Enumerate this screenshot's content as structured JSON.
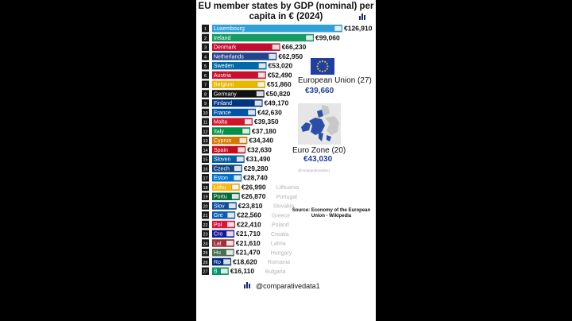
{
  "title_lines": [
    "EU member states by GDP (nominal) per",
    "capita in € (2024)"
  ],
  "eu": {
    "label": "European Union (27)",
    "value": "€39,660"
  },
  "eurozone": {
    "label": "Euro Zone (20)",
    "value": "€43,030"
  },
  "watermark": "@comparativedata1",
  "source": "Source: Economy of the European Union - Wikipedia",
  "handle": "@comparativedata1",
  "chart_data": {
    "type": "bar",
    "orientation": "horizontal",
    "title": "EU member states by GDP (nominal) per capita in € (2024)",
    "categories": [
      "Luxembourg",
      "Ireland",
      "Denmark",
      "Netherlands",
      "Sweden",
      "Austria",
      "Belgium",
      "Germany",
      "Finland",
      "France",
      "Malta",
      "Italy",
      "Cyprus",
      "Spain",
      "Slovenia",
      "Czech",
      "Estonia",
      "Lithuania",
      "Portugal",
      "Slovakia",
      "Greece",
      "Poland",
      "Croatia",
      "Latvia",
      "Hungary",
      "Romania",
      "Bulgaria"
    ],
    "bar_labels": [
      "Luxembourg",
      "Ireland",
      "Denmark",
      "Netherlands",
      "Sweden",
      "Austria",
      "Belgium",
      "Germany",
      "Finland",
      "France",
      "Malta",
      "Italy",
      "Cyprus",
      "Spain",
      "Sloven",
      "Czech",
      "Eston",
      "Lithu",
      "Portu",
      "Slov",
      "Gre",
      "Pol",
      "Cro",
      "Lat",
      "Hu",
      "Ro",
      "B"
    ],
    "ghost_labels": [
      "",
      "",
      "",
      "",
      "",
      "",
      "",
      "",
      "",
      "",
      "",
      "",
      "",
      "",
      "",
      "",
      "",
      "Lithuania",
      "Portugal",
      "Slovakia",
      "Greece",
      "Poland",
      "Croatia",
      "Latvia",
      "Hungary",
      "Romania",
      "Bulgaria"
    ],
    "ranks": [
      "1",
      "2",
      "3",
      "4",
      "5",
      "6",
      "7",
      "8",
      "9",
      "10",
      "11",
      "12",
      "13",
      "14",
      "15",
      "16",
      "17",
      "18",
      "19",
      "20",
      "21",
      "22",
      "23",
      "24",
      "25",
      "26",
      "27"
    ],
    "values": [
      126910,
      99060,
      66230,
      62950,
      53020,
      52490,
      51860,
      50820,
      49170,
      42630,
      39350,
      37180,
      34340,
      32630,
      31490,
      29280,
      28740,
      26990,
      26870,
      23810,
      22560,
      22410,
      21710,
      21610,
      21470,
      18620,
      16110
    ],
    "value_labels": [
      "€126,910",
      "€99,060",
      "€66,230",
      "€62,950",
      "€53,020",
      "€52,490",
      "€51,860",
      "€50,820",
      "€49,170",
      "€42,630",
      "€39,350",
      "€37,180",
      "€34,340",
      "€32,630",
      "€31,490",
      "€29,280",
      "€28,740",
      "€26,990",
      "€26,870",
      "€23,810",
      "€22,560",
      "€22,410",
      "€21,710",
      "€21,610",
      "€21,470",
      "€18,620",
      "€16,110"
    ],
    "bar_colors": [
      "#2fa0d8",
      "#169b62",
      "#c60c30",
      "#21468b",
      "#006aa7",
      "#c8102e",
      "#e8b700",
      "#111111",
      "#003580",
      "#0055a4",
      "#cf142b",
      "#009246",
      "#d57800",
      "#c60b1e",
      "#005da4",
      "#11457e",
      "#0072ce",
      "#fdb913",
      "#046a38",
      "#0b4ea2",
      "#0d5eaf",
      "#dc143c",
      "#171796",
      "#9e3039",
      "#477050",
      "#002b7f",
      "#00966e"
    ],
    "xlim": [
      0,
      126910
    ]
  }
}
